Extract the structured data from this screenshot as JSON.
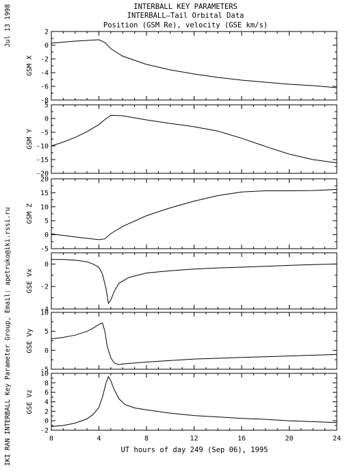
{
  "header": {
    "title_lines": [
      "INTERBALL KEY PARAMETERS",
      "INTERBALL—Tail Orbital Data",
      "Position (GSM Re), velocity (GSE km/s)"
    ],
    "date_stamp": "Jul 13 1998",
    "credit": "IKI RAN INTERBALL Key Parameter Group, Email: apetruko@iki.rssi.ru"
  },
  "chart_data": [
    {
      "type": "line",
      "ylabel": "GSM X",
      "ylim": [
        -8,
        2
      ],
      "yticks": [
        -8,
        -6,
        -4,
        -2,
        0,
        2
      ],
      "x": [
        0,
        2,
        4,
        4.5,
        5,
        6,
        8,
        10,
        12,
        14,
        16,
        18,
        20,
        22,
        24
      ],
      "y": [
        0.3,
        0.6,
        0.8,
        0.4,
        -0.5,
        -1.6,
        -2.8,
        -3.6,
        -4.2,
        -4.7,
        -5.1,
        -5.4,
        -5.7,
        -5.9,
        -6.2
      ]
    },
    {
      "type": "line",
      "ylabel": "GSM Y",
      "ylim": [
        -20,
        5
      ],
      "yticks": [
        -20,
        -15,
        -10,
        -5,
        0,
        5
      ],
      "x": [
        0,
        1,
        2,
        3,
        4,
        4.5,
        5,
        6,
        8,
        10,
        12,
        14,
        16,
        18,
        20,
        22,
        24
      ],
      "y": [
        -10,
        -8.6,
        -6.9,
        -4.8,
        -2.2,
        -0.4,
        1.2,
        1.0,
        -0.5,
        -1.8,
        -3.0,
        -4.6,
        -7.2,
        -10.2,
        -13,
        -15,
        -16.2
      ]
    },
    {
      "type": "line",
      "ylabel": "GSM Z",
      "ylim": [
        -5,
        20
      ],
      "yticks": [
        -5,
        0,
        5,
        10,
        15,
        20
      ],
      "x": [
        0,
        2,
        4,
        4.5,
        5,
        6,
        8,
        10,
        12,
        14,
        16,
        18,
        20,
        22,
        24
      ],
      "y": [
        0.3,
        -0.8,
        -1.8,
        -1.5,
        0.4,
        3.0,
        6.8,
        9.6,
        12.0,
        14.0,
        15.3,
        15.7,
        15.7,
        15.8,
        16.2
      ]
    },
    {
      "type": "line",
      "ylabel": "GSE Vx",
      "ylim": [
        -4,
        1
      ],
      "yticks": [
        -4,
        -2,
        0
      ],
      "x": [
        0,
        1,
        2,
        3,
        3.5,
        4,
        4.3,
        4.6,
        4.8,
        5,
        5.3,
        5.7,
        6.5,
        8,
        10,
        12,
        14,
        16,
        18,
        20,
        22,
        24
      ],
      "y": [
        0.4,
        0.4,
        0.35,
        0.2,
        0,
        -0.3,
        -0.9,
        -2.2,
        -3.5,
        -3.2,
        -2.4,
        -1.7,
        -1.2,
        -0.8,
        -0.6,
        -0.45,
        -0.35,
        -0.28,
        -0.2,
        -0.12,
        -0.05,
        0
      ]
    },
    {
      "type": "line",
      "ylabel": "GSE Vy",
      "ylim": [
        -5,
        10
      ],
      "yticks": [
        -5,
        0,
        5,
        10
      ],
      "x": [
        0,
        1,
        2,
        3,
        3.5,
        4,
        4.3,
        4.5,
        4.7,
        5,
        5.3,
        5.7,
        6,
        8,
        10,
        12,
        14,
        16,
        18,
        20,
        22,
        24
      ],
      "y": [
        3,
        3.4,
        4.0,
        5.0,
        5.8,
        6.8,
        7.2,
        5.0,
        1.0,
        -2.0,
        -3.4,
        -3.8,
        -3.6,
        -3.1,
        -2.7,
        -2.3,
        -2.1,
        -1.9,
        -1.7,
        -1.5,
        -1.3,
        -1.1
      ]
    },
    {
      "type": "line",
      "ylabel": "GSE Vz",
      "ylim": [
        -2,
        10
      ],
      "yticks": [
        -2,
        0,
        2,
        4,
        6,
        8,
        10
      ],
      "x": [
        0,
        1,
        2,
        3,
        3.5,
        4,
        4.3,
        4.6,
        4.8,
        5,
        5.3,
        5.7,
        6.2,
        7,
        8,
        10,
        12,
        14,
        16,
        18,
        20,
        22,
        24
      ],
      "y": [
        -1.2,
        -1.0,
        -0.5,
        0.4,
        1.3,
        2.8,
        5.0,
        8.0,
        9.3,
        8.4,
        6.5,
        4.6,
        3.4,
        2.7,
        2.3,
        1.6,
        1.1,
        0.8,
        0.5,
        0.3,
        0.0,
        -0.2,
        -0.4
      ]
    }
  ],
  "xaxis": {
    "label": "UT hours of day 249 (Sep 06), 1995",
    "ticks": [
      0,
      4,
      8,
      12,
      16,
      20,
      24
    ],
    "range": [
      0,
      24
    ]
  }
}
